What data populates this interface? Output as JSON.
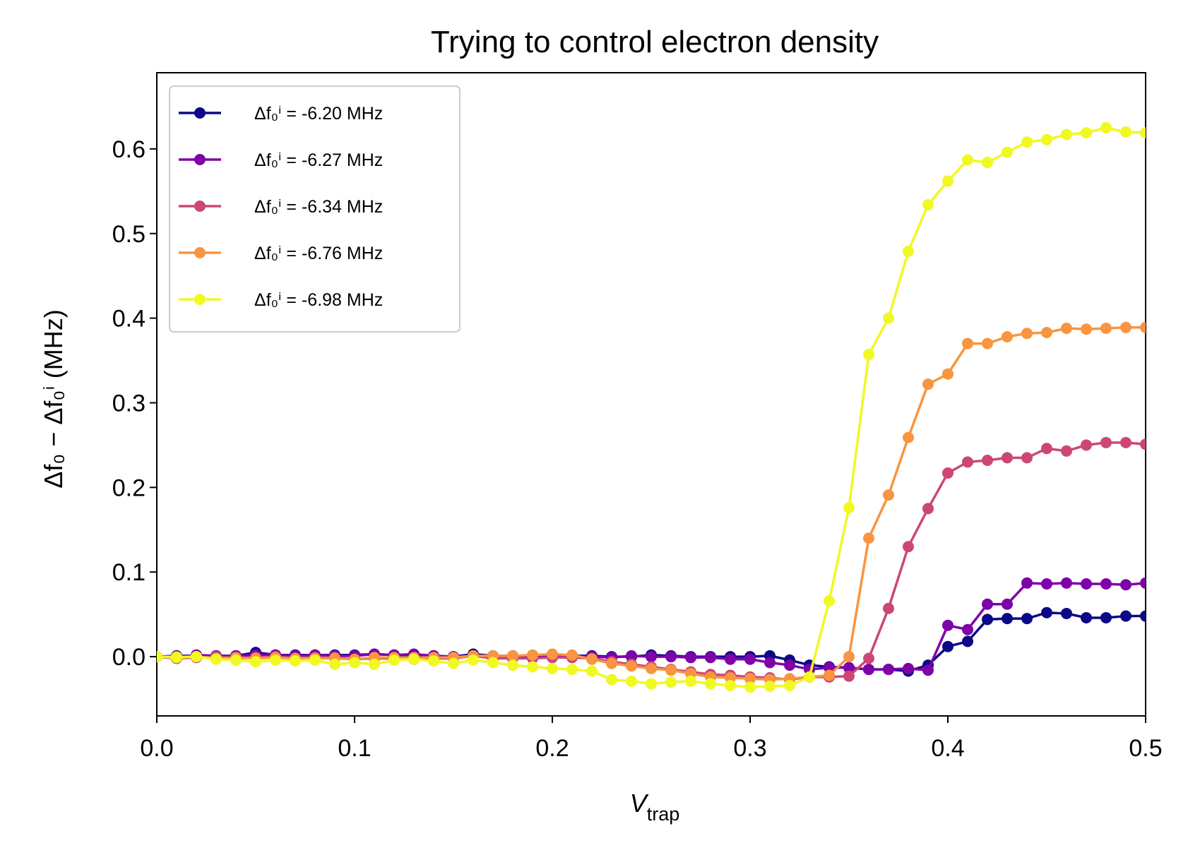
{
  "chart_data": {
    "type": "line",
    "title": "Trying to control electron density",
    "xlabel": {
      "main": "V",
      "sub": "trap"
    },
    "ylabel": "Δf₀ − Δf₀ⁱ (MHz)",
    "xlim": [
      0.0,
      0.5
    ],
    "ylim": [
      -0.07,
      0.69
    ],
    "xticks": [
      0.0,
      0.1,
      0.2,
      0.3,
      0.4,
      0.5
    ],
    "xtick_labels": [
      "0.0",
      "0.1",
      "0.2",
      "0.3",
      "0.4",
      "0.5"
    ],
    "yticks": [
      0.0,
      0.1,
      0.2,
      0.3,
      0.4,
      0.5,
      0.6
    ],
    "ytick_labels": [
      "0.0",
      "0.1",
      "0.2",
      "0.3",
      "0.4",
      "0.5",
      "0.6"
    ],
    "grid": false,
    "legend_position": "top-left",
    "x": [
      0.0,
      0.01,
      0.02,
      0.03,
      0.04,
      0.05,
      0.06,
      0.07,
      0.08,
      0.09,
      0.1,
      0.11,
      0.12,
      0.13,
      0.14,
      0.15,
      0.16,
      0.17,
      0.18,
      0.19,
      0.2,
      0.21,
      0.22,
      0.23,
      0.24,
      0.25,
      0.26,
      0.27,
      0.28,
      0.29,
      0.3,
      0.31,
      0.32,
      0.33,
      0.34,
      0.35,
      0.36,
      0.37,
      0.38,
      0.39,
      0.4,
      0.41,
      0.42,
      0.43,
      0.44,
      0.45,
      0.46,
      0.47,
      0.48,
      0.49,
      0.5
    ],
    "series": [
      {
        "name": "Δf₀ⁱ = -6.20 MHz",
        "color": "#0d0887",
        "values": [
          0.0,
          0.001,
          0.001,
          0.001,
          0.001,
          0.005,
          0.002,
          0.002,
          0.002,
          0.002,
          0.002,
          0.003,
          0.002,
          0.002,
          0.001,
          0.0,
          0.003,
          0.001,
          0.001,
          0.001,
          0.0,
          0.001,
          0.001,
          0.0,
          0.0,
          0.002,
          0.001,
          0.0,
          0.0,
          0.0,
          0.0,
          0.001,
          -0.004,
          -0.01,
          -0.012,
          -0.013,
          -0.015,
          -0.015,
          -0.017,
          -0.01,
          0.012,
          0.018,
          0.044,
          0.045,
          0.045,
          0.052,
          0.051,
          0.046,
          0.046,
          0.048,
          0.048
        ]
      },
      {
        "name": "Δf₀ⁱ = -6.27 MHz",
        "color": "#7e03a8",
        "values": [
          0.0,
          -0.002,
          0.002,
          0.001,
          0.001,
          0.002,
          0.002,
          0.001,
          0.002,
          0.001,
          0.001,
          0.003,
          0.002,
          0.003,
          0.001,
          0.0,
          0.001,
          0.0,
          0.0,
          0.0,
          0.0,
          0.0,
          0.0,
          -0.001,
          0.001,
          0.0,
          0.0,
          -0.001,
          -0.001,
          -0.003,
          -0.003,
          -0.007,
          -0.01,
          -0.015,
          -0.013,
          -0.013,
          -0.015,
          -0.015,
          -0.014,
          -0.016,
          0.037,
          0.032,
          0.062,
          0.062,
          0.087,
          0.086,
          0.087,
          0.086,
          0.086,
          0.085,
          0.087
        ]
      },
      {
        "name": "Δf₀ⁱ = -6.34 MHz",
        "color": "#cc4778",
        "values": [
          0.0,
          -0.002,
          -0.001,
          0.0,
          -0.002,
          -0.001,
          0.0,
          -0.002,
          -0.001,
          -0.001,
          -0.003,
          -0.002,
          -0.002,
          -0.003,
          -0.002,
          -0.002,
          0.001,
          -0.002,
          -0.002,
          -0.002,
          -0.001,
          -0.001,
          -0.002,
          -0.006,
          -0.009,
          -0.012,
          -0.015,
          -0.018,
          -0.021,
          -0.022,
          -0.024,
          -0.025,
          -0.027,
          -0.024,
          -0.024,
          -0.023,
          -0.002,
          0.057,
          0.13,
          0.175,
          0.217,
          0.23,
          0.232,
          0.235,
          0.235,
          0.246,
          0.243,
          0.25,
          0.253,
          0.253,
          0.251
        ]
      },
      {
        "name": "Δf₀ⁱ = -6.76 MHz",
        "color": "#f89540",
        "values": [
          0.0,
          0.0,
          0.0,
          -0.002,
          -0.001,
          -0.002,
          -0.001,
          -0.002,
          -0.002,
          -0.002,
          -0.003,
          -0.001,
          -0.001,
          -0.001,
          -0.001,
          -0.001,
          0.001,
          0.001,
          0.001,
          0.002,
          0.003,
          0.002,
          -0.003,
          -0.008,
          -0.011,
          -0.014,
          -0.016,
          -0.02,
          -0.024,
          -0.025,
          -0.026,
          -0.027,
          -0.026,
          -0.024,
          -0.022,
          0.0,
          0.14,
          0.191,
          0.259,
          0.322,
          0.334,
          0.37,
          0.37,
          0.378,
          0.382,
          0.383,
          0.388,
          0.387,
          0.388,
          0.389,
          0.389
        ]
      },
      {
        "name": "Δf₀ⁱ = -6.98 MHz",
        "color": "#f0f921",
        "values": [
          0.0,
          -0.001,
          0.0,
          -0.003,
          -0.004,
          -0.006,
          -0.004,
          -0.005,
          -0.004,
          -0.009,
          -0.007,
          -0.009,
          -0.004,
          -0.003,
          -0.005,
          -0.008,
          -0.004,
          -0.007,
          -0.01,
          -0.012,
          -0.014,
          -0.015,
          -0.017,
          -0.027,
          -0.029,
          -0.032,
          -0.03,
          -0.029,
          -0.032,
          -0.034,
          -0.036,
          -0.035,
          -0.034,
          -0.024,
          0.066,
          0.176,
          0.357,
          0.4,
          0.479,
          0.534,
          0.562,
          0.587,
          0.584,
          0.596,
          0.608,
          0.611,
          0.617,
          0.619,
          0.625,
          0.62,
          0.619
        ]
      }
    ]
  }
}
